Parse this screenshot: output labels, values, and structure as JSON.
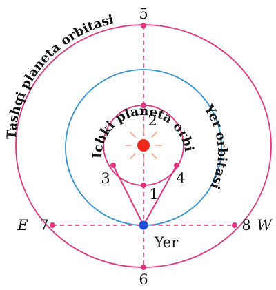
{
  "diagram": {
    "orbit_labels": {
      "outer": "Tashqi planeta orbitasi",
      "earth": "Yer orbitasi",
      "inner": "Ichki planeta orbitasi"
    },
    "points": {
      "p1": "1",
      "p2": "2",
      "p3": "3",
      "p4": "4",
      "p5": "5",
      "p6": "6",
      "p7": "7",
      "p8": "8"
    },
    "directions": {
      "east": "E",
      "west": "W"
    },
    "earth_label": "Yer",
    "colors": {
      "outer_orbit": "#e0357e",
      "earth_orbit": "#2f8fd1",
      "inner_orbit": "#e0357e",
      "sun": "#f0281e",
      "sun_rays": "#f4a38a",
      "earth": "#1f4fd8",
      "points": "#e0357e"
    }
  }
}
